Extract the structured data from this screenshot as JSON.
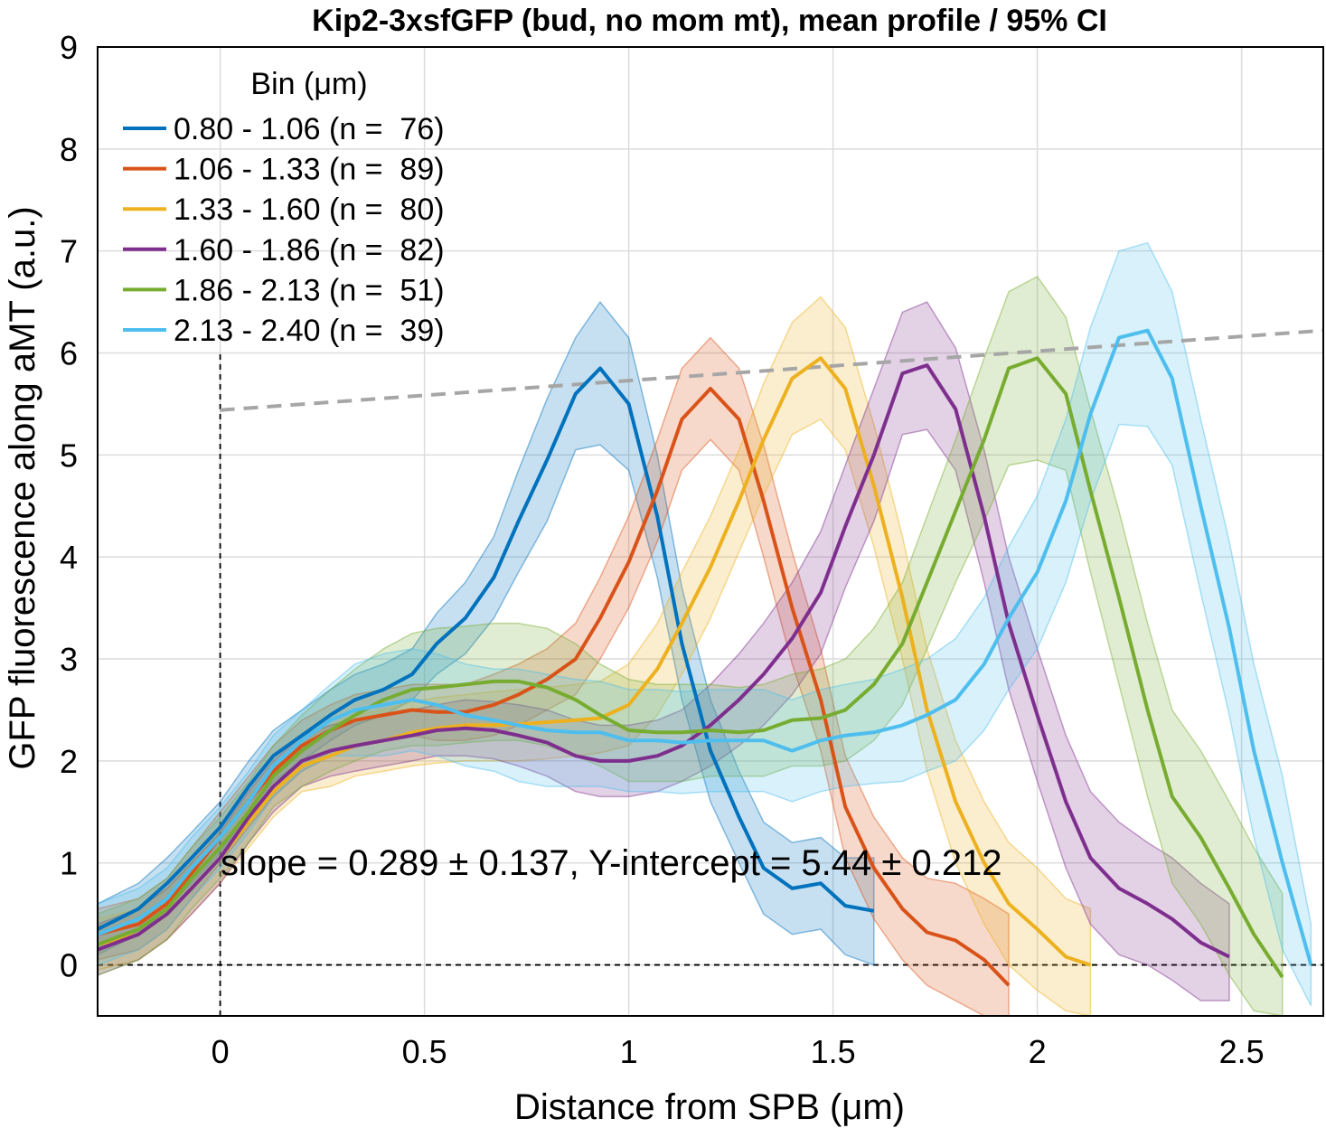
{
  "chart_data": {
    "type": "line",
    "title": "Kip2-3xsfGFP (bud, no mom mt), mean profile / 95% CI",
    "xlabel": "Distance from SPB (μm)",
    "ylabel": "GFP fluorescence along aMT (a.u.)",
    "xlim": [
      -0.3,
      2.7
    ],
    "ylim": [
      -0.5,
      9
    ],
    "xticks": [
      0,
      0.5,
      1,
      1.5,
      2,
      2.5
    ],
    "xtick_labels": [
      "0",
      "0.5",
      "1",
      "1.5",
      "2",
      "2.5"
    ],
    "yticks": [
      0,
      1,
      2,
      3,
      4,
      5,
      6,
      7,
      8,
      9
    ],
    "ytick_labels": [
      "0",
      "1",
      "2",
      "3",
      "4",
      "5",
      "6",
      "7",
      "8",
      "9"
    ],
    "grid": true,
    "legend": {
      "title": "Bin (μm)",
      "position": "top-left"
    },
    "series": [
      {
        "name": "0.80 - 1.06 (n =  76)",
        "color": "#0072BD",
        "x": [
          -0.3,
          -0.2,
          -0.13,
          -0.07,
          0,
          0.07,
          0.13,
          0.2,
          0.27,
          0.33,
          0.4,
          0.47,
          0.53,
          0.6,
          0.67,
          0.73,
          0.8,
          0.87,
          0.93,
          1.0,
          1.07,
          1.13,
          1.2,
          1.27,
          1.33,
          1.4,
          1.47,
          1.53,
          1.6
        ],
        "y": [
          0.35,
          0.55,
          0.8,
          1.05,
          1.35,
          1.75,
          2.05,
          2.25,
          2.45,
          2.6,
          2.7,
          2.85,
          3.15,
          3.4,
          3.8,
          4.35,
          4.95,
          5.6,
          5.85,
          5.5,
          4.4,
          3.15,
          2.1,
          1.45,
          0.95,
          0.75,
          0.8,
          0.58,
          0.53
        ],
        "ci_upper": [
          0.6,
          0.8,
          1.05,
          1.3,
          1.6,
          2.0,
          2.3,
          2.5,
          2.7,
          2.85,
          2.95,
          3.1,
          3.45,
          3.75,
          4.2,
          4.85,
          5.55,
          6.15,
          6.5,
          6.15,
          5.0,
          3.7,
          2.6,
          1.9,
          1.4,
          1.2,
          1.25,
          1.05,
          1.05
        ],
        "ci_lower": [
          0.1,
          0.3,
          0.55,
          0.8,
          1.1,
          1.5,
          1.8,
          2.0,
          2.2,
          2.35,
          2.45,
          2.6,
          2.85,
          3.05,
          3.4,
          3.85,
          4.35,
          5.05,
          5.1,
          4.85,
          3.8,
          2.6,
          1.6,
          1.0,
          0.5,
          0.3,
          0.35,
          0.1,
          0.0
        ]
      },
      {
        "name": "1.06 - 1.33 (n =  89)",
        "color": "#D95319",
        "x": [
          -0.3,
          -0.2,
          -0.13,
          -0.07,
          0,
          0.07,
          0.13,
          0.2,
          0.27,
          0.33,
          0.4,
          0.47,
          0.53,
          0.6,
          0.67,
          0.73,
          0.8,
          0.87,
          0.93,
          1.0,
          1.07,
          1.13,
          1.2,
          1.27,
          1.33,
          1.4,
          1.47,
          1.53,
          1.6,
          1.67,
          1.73,
          1.8,
          1.87,
          1.93
        ],
        "y": [
          0.3,
          0.4,
          0.6,
          0.9,
          1.25,
          1.6,
          1.9,
          2.15,
          2.3,
          2.4,
          2.45,
          2.5,
          2.48,
          2.48,
          2.55,
          2.65,
          2.8,
          3.0,
          3.4,
          3.95,
          4.65,
          5.35,
          5.65,
          5.35,
          4.55,
          3.5,
          2.6,
          1.55,
          0.95,
          0.55,
          0.32,
          0.24,
          0.05,
          -0.2
        ],
        "ci_upper": [
          0.55,
          0.65,
          0.85,
          1.15,
          1.5,
          1.85,
          2.15,
          2.4,
          2.55,
          2.65,
          2.7,
          2.75,
          2.75,
          2.75,
          2.85,
          2.95,
          3.1,
          3.35,
          3.8,
          4.4,
          5.15,
          5.85,
          6.15,
          5.85,
          5.1,
          4.05,
          3.1,
          2.05,
          1.45,
          1.05,
          0.85,
          0.8,
          0.65,
          0.5
        ],
        "ci_lower": [
          0.05,
          0.15,
          0.35,
          0.65,
          1.0,
          1.35,
          1.65,
          1.9,
          2.05,
          2.15,
          2.2,
          2.25,
          2.2,
          2.2,
          2.25,
          2.35,
          2.5,
          2.65,
          3.0,
          3.5,
          4.15,
          4.85,
          5.15,
          4.85,
          4.0,
          2.95,
          2.1,
          1.05,
          0.45,
          0.05,
          -0.2,
          -0.35,
          -0.5,
          -0.5
        ]
      },
      {
        "name": "1.33 - 1.60 (n =  80)",
        "color": "#EDB120",
        "x": [
          -0.3,
          -0.2,
          -0.13,
          -0.07,
          0,
          0.07,
          0.13,
          0.2,
          0.27,
          0.33,
          0.4,
          0.47,
          0.53,
          0.6,
          0.67,
          0.73,
          0.8,
          0.87,
          0.93,
          1.0,
          1.07,
          1.13,
          1.2,
          1.27,
          1.33,
          1.4,
          1.47,
          1.53,
          1.6,
          1.67,
          1.73,
          1.8,
          1.87,
          1.93,
          2.0,
          2.07,
          2.13
        ],
        "y": [
          0.2,
          0.3,
          0.5,
          0.75,
          1.05,
          1.4,
          1.7,
          1.95,
          2.05,
          2.15,
          2.2,
          2.28,
          2.32,
          2.35,
          2.35,
          2.36,
          2.38,
          2.4,
          2.42,
          2.55,
          2.9,
          3.35,
          3.9,
          4.55,
          5.15,
          5.75,
          5.95,
          5.65,
          4.7,
          3.6,
          2.5,
          1.6,
          1.0,
          0.6,
          0.35,
          0.08,
          0.0
        ],
        "ci_upper": [
          0.45,
          0.55,
          0.75,
          1.0,
          1.3,
          1.65,
          1.95,
          2.2,
          2.35,
          2.45,
          2.5,
          2.58,
          2.62,
          2.65,
          2.68,
          2.7,
          2.72,
          2.75,
          2.78,
          2.95,
          3.35,
          3.85,
          4.4,
          5.05,
          5.7,
          6.3,
          6.55,
          6.25,
          5.3,
          4.2,
          3.1,
          2.2,
          1.6,
          1.2,
          0.95,
          0.65,
          0.55
        ],
        "ci_lower": [
          -0.05,
          0.05,
          0.25,
          0.5,
          0.8,
          1.15,
          1.45,
          1.7,
          1.75,
          1.85,
          1.9,
          1.95,
          1.98,
          2.0,
          2.0,
          2.0,
          2.02,
          2.05,
          2.08,
          2.15,
          2.45,
          2.85,
          3.4,
          4.05,
          4.6,
          5.2,
          5.35,
          5.05,
          4.1,
          3.0,
          1.9,
          1.0,
          0.4,
          0.0,
          -0.25,
          -0.45,
          -0.5
        ]
      },
      {
        "name": "1.60 - 1.86 (n =  82)",
        "color": "#7E2F8E",
        "x": [
          -0.3,
          -0.2,
          -0.13,
          -0.07,
          0,
          0.07,
          0.13,
          0.2,
          0.27,
          0.33,
          0.4,
          0.47,
          0.53,
          0.6,
          0.67,
          0.73,
          0.8,
          0.87,
          0.93,
          1.0,
          1.07,
          1.13,
          1.2,
          1.27,
          1.33,
          1.4,
          1.47,
          1.53,
          1.6,
          1.67,
          1.73,
          1.8,
          1.87,
          1.93,
          2.0,
          2.07,
          2.13,
          2.2,
          2.27,
          2.33,
          2.4,
          2.47
        ],
        "y": [
          0.15,
          0.3,
          0.5,
          0.75,
          1.05,
          1.45,
          1.75,
          2.0,
          2.1,
          2.15,
          2.2,
          2.25,
          2.3,
          2.32,
          2.3,
          2.25,
          2.18,
          2.05,
          2.0,
          2.0,
          2.05,
          2.15,
          2.35,
          2.6,
          2.85,
          3.2,
          3.65,
          4.3,
          5.0,
          5.8,
          5.88,
          5.45,
          4.4,
          3.35,
          2.45,
          1.6,
          1.05,
          0.75,
          0.6,
          0.45,
          0.22,
          0.08
        ],
        "ci_upper": [
          0.4,
          0.55,
          0.75,
          1.0,
          1.3,
          1.7,
          2.0,
          2.25,
          2.35,
          2.4,
          2.45,
          2.5,
          2.55,
          2.6,
          2.58,
          2.55,
          2.5,
          2.4,
          2.35,
          2.35,
          2.4,
          2.5,
          2.75,
          3.05,
          3.35,
          3.75,
          4.25,
          4.9,
          5.65,
          6.4,
          6.5,
          6.05,
          5.05,
          4.0,
          3.1,
          2.25,
          1.7,
          1.4,
          1.2,
          1.05,
          0.8,
          0.6
        ],
        "ci_lower": [
          -0.1,
          0.05,
          0.25,
          0.5,
          0.8,
          1.2,
          1.5,
          1.75,
          1.85,
          1.9,
          1.95,
          2.0,
          2.05,
          2.05,
          2.02,
          1.95,
          1.85,
          1.7,
          1.65,
          1.65,
          1.7,
          1.8,
          1.95,
          2.15,
          2.35,
          2.65,
          3.05,
          3.7,
          4.35,
          5.2,
          5.25,
          4.85,
          3.75,
          2.7,
          1.8,
          0.95,
          0.4,
          0.1,
          0.0,
          -0.15,
          -0.35,
          -0.35
        ]
      },
      {
        "name": "1.86 - 2.13 (n =  51)",
        "color": "#77AC30",
        "x": [
          -0.3,
          -0.2,
          -0.13,
          -0.07,
          0,
          0.07,
          0.13,
          0.2,
          0.27,
          0.33,
          0.4,
          0.47,
          0.53,
          0.6,
          0.67,
          0.73,
          0.8,
          0.87,
          0.93,
          1.0,
          1.07,
          1.13,
          1.2,
          1.27,
          1.33,
          1.4,
          1.47,
          1.53,
          1.6,
          1.67,
          1.73,
          1.8,
          1.87,
          1.93,
          2.0,
          2.07,
          2.13,
          2.2,
          2.27,
          2.33,
          2.4,
          2.47,
          2.53,
          2.6
        ],
        "y": [
          0.2,
          0.35,
          0.55,
          0.85,
          1.15,
          1.5,
          1.85,
          2.1,
          2.3,
          2.45,
          2.6,
          2.7,
          2.72,
          2.75,
          2.78,
          2.78,
          2.72,
          2.6,
          2.45,
          2.3,
          2.28,
          2.28,
          2.3,
          2.28,
          2.3,
          2.4,
          2.42,
          2.5,
          2.75,
          3.15,
          3.75,
          4.45,
          5.15,
          5.85,
          5.95,
          5.6,
          4.65,
          3.6,
          2.5,
          1.65,
          1.25,
          0.75,
          0.3,
          -0.12
        ],
        "ci_upper": [
          0.5,
          0.65,
          0.85,
          1.15,
          1.45,
          1.8,
          2.15,
          2.45,
          2.7,
          2.9,
          3.1,
          3.25,
          3.3,
          3.32,
          3.35,
          3.35,
          3.3,
          3.15,
          2.95,
          2.8,
          2.75,
          2.75,
          2.75,
          2.72,
          2.75,
          2.85,
          2.9,
          3.0,
          3.3,
          3.75,
          4.4,
          5.15,
          5.95,
          6.6,
          6.75,
          6.35,
          5.45,
          4.45,
          3.35,
          2.5,
          2.1,
          1.6,
          1.15,
          0.7
        ],
        "ci_lower": [
          -0.1,
          0.05,
          0.25,
          0.55,
          0.85,
          1.2,
          1.55,
          1.75,
          1.9,
          2.0,
          2.1,
          2.15,
          2.15,
          2.18,
          2.2,
          2.2,
          2.15,
          2.05,
          1.95,
          1.8,
          1.8,
          1.8,
          1.85,
          1.85,
          1.85,
          1.95,
          1.95,
          2.0,
          2.2,
          2.55,
          3.1,
          3.75,
          4.35,
          4.9,
          4.95,
          4.85,
          3.85,
          2.75,
          1.65,
          0.8,
          0.4,
          -0.1,
          -0.45,
          -0.5
        ]
      },
      {
        "name": "2.13 - 2.40 (n =  39)",
        "color": "#4DBEEE",
        "x": [
          -0.3,
          -0.2,
          -0.13,
          -0.07,
          0,
          0.07,
          0.13,
          0.2,
          0.27,
          0.33,
          0.4,
          0.47,
          0.53,
          0.6,
          0.67,
          0.73,
          0.8,
          0.87,
          0.93,
          1.0,
          1.07,
          1.13,
          1.2,
          1.27,
          1.33,
          1.4,
          1.47,
          1.53,
          1.6,
          1.67,
          1.73,
          1.8,
          1.87,
          1.93,
          2.0,
          2.07,
          2.13,
          2.2,
          2.27,
          2.33,
          2.4,
          2.47,
          2.53,
          2.6,
          2.67
        ],
        "y": [
          0.3,
          0.45,
          0.65,
          0.95,
          1.25,
          1.6,
          1.95,
          2.2,
          2.4,
          2.5,
          2.55,
          2.6,
          2.55,
          2.45,
          2.4,
          2.35,
          2.3,
          2.28,
          2.28,
          2.2,
          2.2,
          2.18,
          2.2,
          2.2,
          2.2,
          2.1,
          2.2,
          2.25,
          2.28,
          2.35,
          2.45,
          2.6,
          2.95,
          3.4,
          3.85,
          4.55,
          5.4,
          6.15,
          6.22,
          5.75,
          4.5,
          3.3,
          2.1,
          1.0,
          0.0
        ],
        "ci_upper": [
          0.6,
          0.75,
          0.95,
          1.25,
          1.55,
          1.9,
          2.25,
          2.5,
          2.75,
          2.95,
          3.05,
          3.1,
          3.05,
          2.95,
          2.9,
          2.9,
          2.85,
          2.8,
          2.78,
          2.7,
          2.7,
          2.68,
          2.7,
          2.7,
          2.7,
          2.6,
          2.7,
          2.75,
          2.8,
          2.9,
          3.0,
          3.2,
          3.6,
          4.1,
          4.6,
          5.35,
          6.25,
          7.0,
          7.08,
          6.6,
          5.35,
          4.15,
          2.95,
          1.85,
          0.4
        ],
        "ci_lower": [
          0.0,
          0.15,
          0.35,
          0.65,
          0.95,
          1.3,
          1.65,
          1.9,
          2.05,
          2.05,
          2.05,
          2.1,
          2.05,
          1.95,
          1.9,
          1.8,
          1.75,
          1.75,
          1.75,
          1.7,
          1.7,
          1.68,
          1.7,
          1.7,
          1.7,
          1.6,
          1.7,
          1.75,
          1.78,
          1.8,
          1.9,
          2.0,
          2.3,
          2.7,
          3.1,
          3.75,
          4.55,
          5.3,
          5.28,
          4.9,
          3.65,
          2.45,
          1.25,
          0.15,
          -0.4
        ]
      }
    ],
    "fit_line": {
      "x": [
        0,
        2.7
      ],
      "y": [
        5.44,
        6.22
      ],
      "color": "#a6a6a6",
      "style": "dashed"
    },
    "annotation": "slope = 0.289 ± 0.137, Y-intercept = 5.44 ± 0.212"
  }
}
